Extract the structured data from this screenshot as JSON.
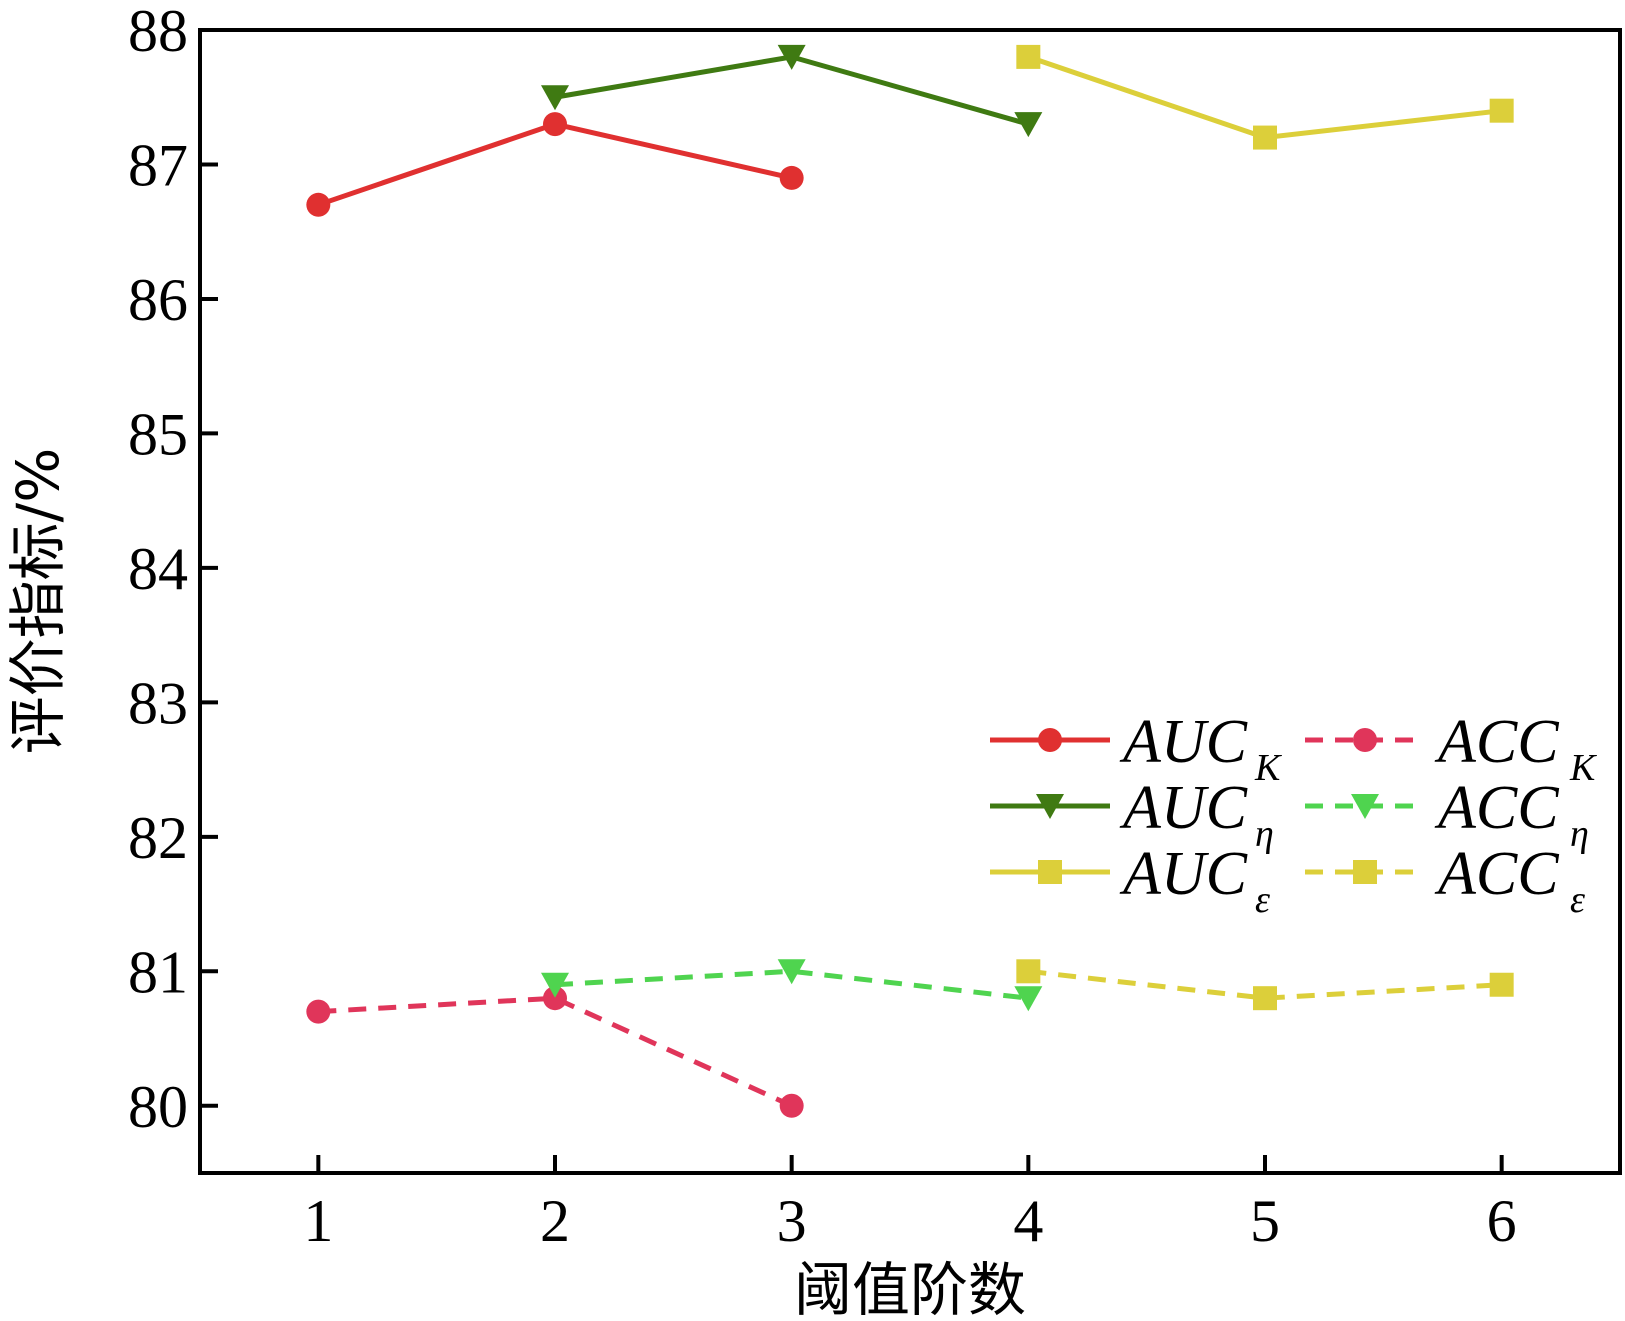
{
  "chart_data": {
    "type": "line",
    "xlabel": "阈值阶数",
    "ylabel": "评价指标/%",
    "xlim": [
      0.5,
      6.5
    ],
    "ylim": [
      79.5,
      88
    ],
    "xticks": [
      1,
      2,
      3,
      4,
      5,
      6
    ],
    "yticks": [
      80,
      81,
      82,
      83,
      84,
      85,
      86,
      87,
      88
    ],
    "grid": false,
    "legend_position": "center-right",
    "series": [
      {
        "name": "AUC",
        "subscript": "K",
        "x": [
          1,
          2,
          3
        ],
        "values": [
          86.7,
          87.3,
          86.9
        ],
        "color": "#e03030",
        "marker": "circle",
        "dash": false
      },
      {
        "name": "ACC",
        "subscript": "K",
        "x": [
          1,
          2,
          3
        ],
        "values": [
          80.7,
          80.8,
          80.0
        ],
        "color": "#e0355a",
        "marker": "circle",
        "dash": true
      },
      {
        "name": "AUC",
        "subscript": "η",
        "x": [
          2,
          3,
          4
        ],
        "values": [
          87.5,
          87.8,
          87.3
        ],
        "color": "#3f7a12",
        "marker": "triangle-down",
        "dash": false
      },
      {
        "name": "ACC",
        "subscript": "η",
        "x": [
          2,
          3,
          4
        ],
        "values": [
          80.9,
          81.0,
          80.8
        ],
        "color": "#4fd44f",
        "marker": "triangle-down",
        "dash": true
      },
      {
        "name": "AUC",
        "subscript": "ε",
        "x": [
          4,
          5,
          6
        ],
        "values": [
          87.8,
          87.2,
          87.4
        ],
        "color": "#dccf3a",
        "marker": "square",
        "dash": false
      },
      {
        "name": "ACC",
        "subscript": "ε",
        "x": [
          4,
          5,
          6
        ],
        "values": [
          81.0,
          80.8,
          80.9
        ],
        "color": "#dccf3a",
        "marker": "square",
        "dash": true
      }
    ],
    "legend_order": [
      0,
      1,
      2,
      3,
      4,
      5
    ]
  }
}
